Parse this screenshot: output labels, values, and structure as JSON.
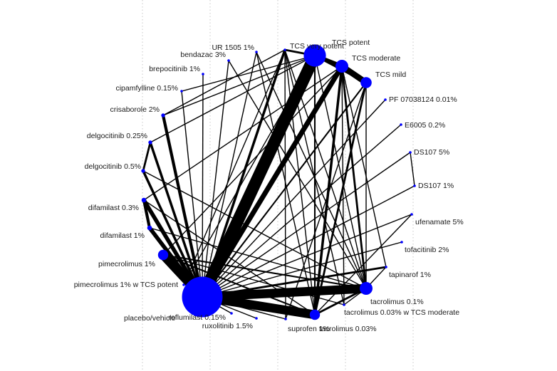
{
  "chart_data": {
    "type": "network",
    "node_color": "#0000ff",
    "edge_color": "#000000",
    "nodes": [
      {
        "id": "tcs_very_potent",
        "label": "TCS very potent",
        "weight": 5.2
      },
      {
        "id": "tcs_potent",
        "label": "TCS potent",
        "weight": 0.6
      },
      {
        "id": "tcs_moderate",
        "label": "TCS moderate",
        "weight": 3.0
      },
      {
        "id": "tcs_mild",
        "label": "TCS mild",
        "weight": 2.6
      },
      {
        "id": "pf07038124",
        "label": "PF 07038124 0.01%",
        "weight": 0.6
      },
      {
        "id": "e6005",
        "label": "E6005 0.2%",
        "weight": 0.6
      },
      {
        "id": "ds107_5",
        "label": "DS107 5%",
        "weight": 0.6
      },
      {
        "id": "ds107_1",
        "label": "DS107 1%",
        "weight": 0.6
      },
      {
        "id": "ufenamate",
        "label": "ufenamate 5%",
        "weight": 0.6
      },
      {
        "id": "tofacitinib",
        "label": "tofacitinib 2%",
        "weight": 0.6
      },
      {
        "id": "tapinarof",
        "label": "tapinarof 1%",
        "weight": 0.6
      },
      {
        "id": "tacrolimus01",
        "label": "tacrolimus 0.1%",
        "weight": 3.0
      },
      {
        "id": "tacrolimus003_tcs",
        "label": "tacrolimus 0.03% w TCS moderate",
        "weight": 0.6
      },
      {
        "id": "tacrolimus003",
        "label": "tacrolimus 0.03%",
        "weight": 2.4
      },
      {
        "id": "suprofen",
        "label": "suprofen 1%",
        "weight": 0.6
      },
      {
        "id": "ruxolitinib",
        "label": "ruxolitinib 1.5%",
        "weight": 0.6
      },
      {
        "id": "roflumilast",
        "label": "roflumilast 0.15%",
        "weight": 0.6
      },
      {
        "id": "placebo",
        "label": "placebo/vehicle",
        "weight": 9.5
      },
      {
        "id": "pimecrolimus_tcs",
        "label": "pimecrolimus 1% w TCS potent",
        "weight": 0.6
      },
      {
        "id": "pimecrolimus",
        "label": "pimecrolimus 1%",
        "weight": 2.4
      },
      {
        "id": "difamilast1",
        "label": "difamilast 1%",
        "weight": 1.1
      },
      {
        "id": "difamilast03",
        "label": "difamilast 0.3%",
        "weight": 1.1
      },
      {
        "id": "delgocitinib05",
        "label": "delgocitinib 0.5%",
        "weight": 0.9
      },
      {
        "id": "delgocitinib025",
        "label": "delgocitinib 0.25%",
        "weight": 0.9
      },
      {
        "id": "crisaborole",
        "label": "crisaborole 2%",
        "weight": 0.9
      },
      {
        "id": "cipamfylline",
        "label": "cipamfylline 0.15%",
        "weight": 0.6
      },
      {
        "id": "brepocitinib",
        "label": "brepocitinib 1%",
        "weight": 0.6
      },
      {
        "id": "bendazac",
        "label": "bendazac 3%",
        "weight": 0.6
      },
      {
        "id": "ur1505",
        "label": "UR 1505 1%",
        "weight": 0.6
      }
    ],
    "edges": [
      {
        "from": "placebo",
        "to": "tcs_very_potent",
        "weight": 12
      },
      {
        "from": "placebo",
        "to": "tcs_moderate",
        "weight": 5
      },
      {
        "from": "placebo",
        "to": "tacrolimus01",
        "weight": 9
      },
      {
        "from": "placebo",
        "to": "tacrolimus003",
        "weight": 9
      },
      {
        "from": "placebo",
        "to": "pimecrolimus",
        "weight": 9
      },
      {
        "from": "placebo",
        "to": "difamilast1",
        "weight": 4
      },
      {
        "from": "placebo",
        "to": "difamilast03",
        "weight": 4
      },
      {
        "from": "placebo",
        "to": "crisaborole",
        "weight": 3
      },
      {
        "from": "placebo",
        "to": "delgocitinib025",
        "weight": 2.5
      },
      {
        "from": "placebo",
        "to": "delgocitinib05",
        "weight": 2.5
      },
      {
        "from": "placebo",
        "to": "tcs_potent",
        "weight": 2.5
      },
      {
        "from": "placebo",
        "to": "tcs_mild",
        "weight": 1.5
      },
      {
        "from": "placebo",
        "to": "tapinarof",
        "weight": 2
      },
      {
        "from": "placebo",
        "to": "cipamfylline",
        "weight": 1
      },
      {
        "from": "placebo",
        "to": "brepocitinib",
        "weight": 1
      },
      {
        "from": "placebo",
        "to": "bendazac",
        "weight": 1
      },
      {
        "from": "placebo",
        "to": "ur1505",
        "weight": 1
      },
      {
        "from": "placebo",
        "to": "pf07038124",
        "weight": 1
      },
      {
        "from": "placebo",
        "to": "e6005",
        "weight": 1
      },
      {
        "from": "placebo",
        "to": "ds107_5",
        "weight": 1
      },
      {
        "from": "placebo",
        "to": "ds107_1",
        "weight": 1
      },
      {
        "from": "placebo",
        "to": "ufenamate",
        "weight": 1
      },
      {
        "from": "placebo",
        "to": "tofacitinib",
        "weight": 1
      },
      {
        "from": "placebo",
        "to": "ruxolitinib",
        "weight": 1
      },
      {
        "from": "placebo",
        "to": "roflumilast",
        "weight": 1
      },
      {
        "from": "placebo",
        "to": "suprofen",
        "weight": 1
      },
      {
        "from": "tcs_very_potent",
        "to": "tcs_moderate",
        "weight": 4
      },
      {
        "from": "tcs_moderate",
        "to": "tcs_mild",
        "weight": 6
      },
      {
        "from": "tcs_very_potent",
        "to": "tcs_mild",
        "weight": 2
      },
      {
        "from": "tcs_very_potent",
        "to": "tcs_potent",
        "weight": 2
      },
      {
        "from": "tcs_moderate",
        "to": "tacrolimus003",
        "weight": 2.5
      },
      {
        "from": "tcs_mild",
        "to": "tacrolimus003",
        "weight": 2
      },
      {
        "from": "tcs_very_potent",
        "to": "tacrolimus003",
        "weight": 1.5
      },
      {
        "from": "tcs_moderate",
        "to": "tacrolimus01",
        "weight": 2
      },
      {
        "from": "tcs_mild",
        "to": "tacrolimus01",
        "weight": 1
      },
      {
        "from": "tcs_very_potent",
        "to": "crisaborole",
        "weight": 1
      },
      {
        "from": "tcs_very_potent",
        "to": "delgocitinib025",
        "weight": 1
      },
      {
        "from": "tcs_moderate",
        "to": "pimecrolimus",
        "weight": 1
      },
      {
        "from": "tcs_very_potent",
        "to": "pimecrolimus_tcs",
        "weight": 1
      },
      {
        "from": "tcs_moderate",
        "to": "difamilast03",
        "weight": 1
      },
      {
        "from": "tcs_very_potent",
        "to": "tacrolimus01",
        "weight": 1
      },
      {
        "from": "tacrolimus01",
        "to": "tacrolimus003",
        "weight": 2
      },
      {
        "from": "tacrolimus01",
        "to": "pimecrolimus",
        "weight": 1.5
      },
      {
        "from": "tacrolimus01",
        "to": "tapinarof",
        "weight": 1
      },
      {
        "from": "tacrolimus01",
        "to": "tacrolimus003_tcs",
        "weight": 1
      },
      {
        "from": "tacrolimus01",
        "to": "difamilast1",
        "weight": 1
      },
      {
        "from": "tacrolimus01",
        "to": "delgocitinib05",
        "weight": 1
      },
      {
        "from": "tacrolimus01",
        "to": "ur1505",
        "weight": 1
      },
      {
        "from": "tacrolimus01",
        "to": "bendazac",
        "weight": 1
      },
      {
        "from": "tacrolimus003",
        "to": "pimecrolimus",
        "weight": 1.5
      },
      {
        "from": "tacrolimus003",
        "to": "difamilast03",
        "weight": 1
      },
      {
        "from": "tacrolimus003",
        "to": "ur1505",
        "weight": 1
      },
      {
        "from": "tacrolimus003",
        "to": "tcs_potent",
        "weight": 1
      },
      {
        "from": "tacrolimus003",
        "to": "ufenamate",
        "weight": 1
      },
      {
        "from": "pimecrolimus",
        "to": "tacrolimus003_tcs",
        "weight": 1
      },
      {
        "from": "difamilast03",
        "to": "difamilast1",
        "weight": 3
      },
      {
        "from": "delgocitinib025",
        "to": "delgocitinib05",
        "weight": 2
      },
      {
        "from": "crisaborole",
        "to": "tcs_potent",
        "weight": 1
      },
      {
        "from": "ds107_5",
        "to": "ds107_1",
        "weight": 1
      },
      {
        "from": "cipamfylline",
        "to": "tcs_very_potent",
        "weight": 1
      },
      {
        "from": "tcs_potent",
        "to": "tacrolimus01",
        "weight": 1
      },
      {
        "from": "tcs_potent",
        "to": "suprofen",
        "weight": 1
      },
      {
        "from": "tcs_potent",
        "to": "pimecrolimus_tcs",
        "weight": 1
      },
      {
        "from": "tcs_potent",
        "to": "tacrolimus003_tcs",
        "weight": 1
      },
      {
        "from": "tcs_moderate",
        "to": "tacrolimus003_tcs",
        "weight": 1
      },
      {
        "from": "tcs_moderate",
        "to": "tapinarof",
        "weight": 1
      },
      {
        "from": "tcs_mild",
        "to": "suprofen",
        "weight": 1
      }
    ]
  }
}
